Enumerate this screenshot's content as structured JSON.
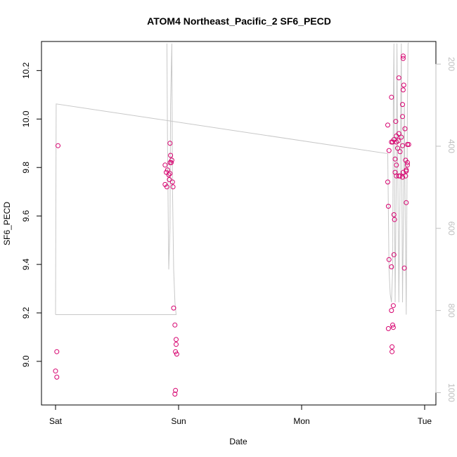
{
  "chart_data": {
    "type": "scatter",
    "title": "ATOM4 Northeast_Pacific_2 SF6_PECD",
    "xlabel": "Date",
    "ylabel": "SF6_PECD",
    "x_ticks": [
      "Sat",
      "Sun",
      "Mon",
      "Tue"
    ],
    "x_unit": "days from Sat 00:00",
    "xlim": [
      -0.02,
      3.07
    ],
    "ylim": [
      8.82,
      10.32
    ],
    "y_ticks": [
      9.0,
      9.2,
      9.4,
      9.6,
      9.8,
      10.0,
      10.2
    ],
    "y2_ticks": [
      200,
      400,
      600,
      800,
      1000
    ],
    "y2lim": [
      1030,
      145
    ],
    "grid": false,
    "series": [
      {
        "color": "#d6006e",
        "points": [
          {
            "x": 0.02,
            "y": 9.89
          },
          {
            "x": 0.01,
            "y": 9.04
          },
          {
            "x": 0.0,
            "y": 8.96
          },
          {
            "x": 0.01,
            "y": 8.935
          },
          {
            "x": 0.89,
            "y": 9.81
          },
          {
            "x": 0.9,
            "y": 9.78
          },
          {
            "x": 0.91,
            "y": 9.79
          },
          {
            "x": 0.92,
            "y": 9.77
          },
          {
            "x": 0.93,
            "y": 9.775
          },
          {
            "x": 0.925,
            "y": 9.75
          },
          {
            "x": 0.89,
            "y": 9.73
          },
          {
            "x": 0.905,
            "y": 9.72
          },
          {
            "x": 0.93,
            "y": 9.82
          },
          {
            "x": 0.935,
            "y": 9.85
          },
          {
            "x": 0.94,
            "y": 9.82
          },
          {
            "x": 0.945,
            "y": 9.83
          },
          {
            "x": 0.93,
            "y": 9.9
          },
          {
            "x": 0.95,
            "y": 9.74
          },
          {
            "x": 0.955,
            "y": 9.72
          },
          {
            "x": 0.96,
            "y": 9.22
          },
          {
            "x": 0.97,
            "y": 9.15
          },
          {
            "x": 0.98,
            "y": 9.09
          },
          {
            "x": 0.98,
            "y": 9.07
          },
          {
            "x": 0.975,
            "y": 9.04
          },
          {
            "x": 0.985,
            "y": 9.03
          },
          {
            "x": 0.975,
            "y": 8.88
          },
          {
            "x": 0.97,
            "y": 8.865
          },
          {
            "x": 2.7,
            "y": 9.975
          },
          {
            "x": 2.7,
            "y": 9.74
          },
          {
            "x": 2.71,
            "y": 9.87
          },
          {
            "x": 2.705,
            "y": 9.64
          },
          {
            "x": 2.71,
            "y": 9.42
          },
          {
            "x": 2.705,
            "y": 9.135
          },
          {
            "x": 2.73,
            "y": 10.09
          },
          {
            "x": 2.73,
            "y": 9.905
          },
          {
            "x": 2.74,
            "y": 9.905
          },
          {
            "x": 2.75,
            "y": 9.915
          },
          {
            "x": 2.76,
            "y": 9.835
          },
          {
            "x": 2.77,
            "y": 9.905
          },
          {
            "x": 2.76,
            "y": 9.78
          },
          {
            "x": 2.75,
            "y": 9.605
          },
          {
            "x": 2.755,
            "y": 9.585
          },
          {
            "x": 2.75,
            "y": 9.44
          },
          {
            "x": 2.73,
            "y": 9.39
          },
          {
            "x": 2.73,
            "y": 9.21
          },
          {
            "x": 2.745,
            "y": 9.23
          },
          {
            "x": 2.74,
            "y": 9.15
          },
          {
            "x": 2.745,
            "y": 9.14
          },
          {
            "x": 2.735,
            "y": 9.06
          },
          {
            "x": 2.735,
            "y": 9.04
          },
          {
            "x": 2.765,
            "y": 9.99
          },
          {
            "x": 2.77,
            "y": 9.93
          },
          {
            "x": 2.77,
            "y": 9.81
          },
          {
            "x": 2.77,
            "y": 9.765
          },
          {
            "x": 2.78,
            "y": 9.88
          },
          {
            "x": 2.785,
            "y": 9.91
          },
          {
            "x": 2.79,
            "y": 9.94
          },
          {
            "x": 2.79,
            "y": 10.17
          },
          {
            "x": 2.79,
            "y": 9.765
          },
          {
            "x": 2.8,
            "y": 9.765
          },
          {
            "x": 2.8,
            "y": 9.865
          },
          {
            "x": 2.81,
            "y": 9.925
          },
          {
            "x": 2.82,
            "y": 9.89
          },
          {
            "x": 2.825,
            "y": 9.78
          },
          {
            "x": 2.82,
            "y": 9.76
          },
          {
            "x": 2.82,
            "y": 10.06
          },
          {
            "x": 2.82,
            "y": 10.01
          },
          {
            "x": 2.825,
            "y": 10.12
          },
          {
            "x": 2.83,
            "y": 10.14
          },
          {
            "x": 2.825,
            "y": 10.26
          },
          {
            "x": 2.825,
            "y": 10.25
          },
          {
            "x": 2.84,
            "y": 9.96
          },
          {
            "x": 2.845,
            "y": 9.83
          },
          {
            "x": 2.85,
            "y": 9.785
          },
          {
            "x": 2.85,
            "y": 9.79
          },
          {
            "x": 2.845,
            "y": 9.765
          },
          {
            "x": 2.86,
            "y": 9.82
          },
          {
            "x": 2.86,
            "y": 9.81
          },
          {
            "x": 2.86,
            "y": 9.895
          },
          {
            "x": 2.87,
            "y": 9.895
          },
          {
            "x": 2.835,
            "y": 9.385
          },
          {
            "x": 2.85,
            "y": 9.655
          }
        ]
      }
    ],
    "overlay_series": {
      "axis": "right",
      "color": "#c8c8c8",
      "points": [
        {
          "x": 0.0,
          "y": 810
        },
        {
          "x": 0.005,
          "y": 297
        },
        {
          "x": 2.7,
          "y": 418
        },
        {
          "x": 2.71,
          "y": 700
        },
        {
          "x": 2.72,
          "y": 760
        },
        {
          "x": 2.73,
          "y": 780
        },
        {
          "x": 2.74,
          "y": 700
        },
        {
          "x": 2.745,
          "y": 300
        },
        {
          "x": 2.75,
          "y": 150
        },
        {
          "x": 2.755,
          "y": 500
        },
        {
          "x": 2.76,
          "y": 780
        },
        {
          "x": 2.77,
          "y": 450
        },
        {
          "x": 2.775,
          "y": 150
        },
        {
          "x": 2.78,
          "y": 400
        },
        {
          "x": 2.79,
          "y": 780
        },
        {
          "x": 2.8,
          "y": 500
        },
        {
          "x": 2.81,
          "y": 150
        },
        {
          "x": 2.815,
          "y": 500
        },
        {
          "x": 2.82,
          "y": 780
        },
        {
          "x": 2.83,
          "y": 500
        },
        {
          "x": 2.835,
          "y": 300
        },
        {
          "x": 2.84,
          "y": 500
        },
        {
          "x": 2.85,
          "y": 810
        },
        {
          "x": 2.86,
          "y": 300
        },
        {
          "x": 2.865,
          "y": 150
        },
        {
          "x": 2.87,
          "y": 148
        }
      ],
      "sun_loop": [
        {
          "x": 0.0,
          "y": 810
        },
        {
          "x": 0.98,
          "y": 810
        },
        {
          "x": 0.97,
          "y": 780
        },
        {
          "x": 0.96,
          "y": 700
        },
        {
          "x": 0.95,
          "y": 500
        },
        {
          "x": 0.945,
          "y": 150
        },
        {
          "x": 0.935,
          "y": 300
        },
        {
          "x": 0.93,
          "y": 600
        },
        {
          "x": 0.92,
          "y": 700
        },
        {
          "x": 0.91,
          "y": 400
        },
        {
          "x": 0.905,
          "y": 150
        }
      ]
    }
  }
}
